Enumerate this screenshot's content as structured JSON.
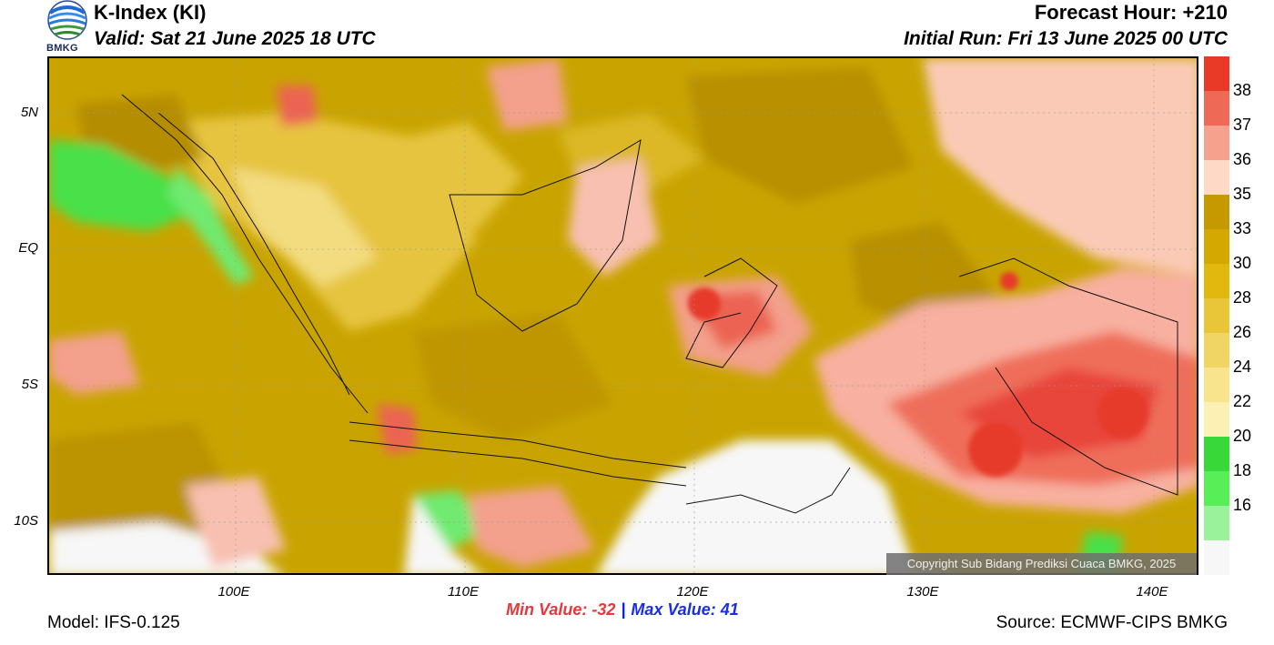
{
  "header": {
    "title": "K-Index (KI)",
    "valid": "Valid: Sat 21 June 2025 18 UTC",
    "forecast_hour": "Forecast Hour: +210",
    "initial_run": "Initial Run: Fri 13 June 2025 00 UTC",
    "logo_text": "BMKG"
  },
  "map": {
    "lat_labels": [
      "5N",
      "EQ",
      "5S",
      "10S"
    ],
    "lon_labels": [
      "100E",
      "110E",
      "120E",
      "130E",
      "140E"
    ],
    "copyright": "Copyright Sub Bidang Prediksi Cuaca BMKG, 2025"
  },
  "stats": {
    "min": "Min Value: -32",
    "separator": "|",
    "max": "Max Value:  41"
  },
  "footer": {
    "model": "Model: IFS-0.125",
    "source": "Source: ECMWF-CIPS BMKG"
  },
  "colorbar": {
    "labels": [
      "38",
      "37",
      "36",
      "35",
      "33",
      "30",
      "28",
      "26",
      "24",
      "22",
      "20",
      "18",
      "16"
    ],
    "colors": [
      "#e83a26",
      "#ef6a56",
      "#f6a08e",
      "#fdd9c6",
      "#c49a00",
      "#d4a800",
      "#e0b80e",
      "#e8c638",
      "#f0d464",
      "#f7e48c",
      "#fbf1b4",
      "#38d838",
      "#58ee58",
      "#9af29a",
      "#f7f7f7"
    ]
  }
}
